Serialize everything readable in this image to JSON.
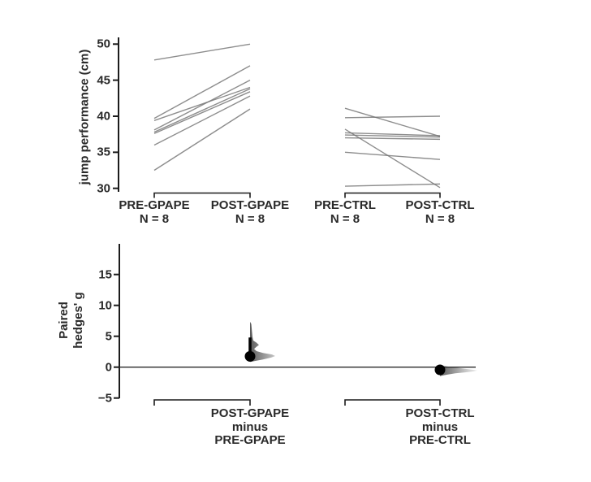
{
  "page": {
    "background": "#ffffff"
  },
  "chart_data": [
    {
      "type": "line",
      "subtype": "paired-slopegraph",
      "title": "",
      "ylabel": "jump performance (cm)",
      "ylim": [
        29,
        51.5
      ],
      "grid": false,
      "yticks": [
        {
          "v": 30,
          "label": "30"
        },
        {
          "v": 35,
          "label": "35"
        },
        {
          "v": 40,
          "label": "40"
        },
        {
          "v": 45,
          "label": "45"
        },
        {
          "v": 50,
          "label": "50"
        }
      ],
      "groups": [
        {
          "label": "PRE-GPAPE",
          "n": "N = 8"
        },
        {
          "label": "POST-GPAPE",
          "n": "N = 8"
        },
        {
          "label": "PRE-CTRL",
          "n": "N = 8"
        },
        {
          "label": "POST-CTRL",
          "n": "N = 8"
        }
      ],
      "series": [
        {
          "name": "GPAPE paired lines",
          "from_group": 0,
          "to_group": 1,
          "pairs": [
            [
              47.8,
              50.0
            ],
            [
              39.7,
              47.0
            ],
            [
              39.4,
              44.0
            ],
            [
              38.1,
              45.0
            ],
            [
              37.8,
              43.8
            ],
            [
              37.6,
              43.4
            ],
            [
              36.0,
              42.8
            ],
            [
              32.5,
              41.0
            ]
          ]
        },
        {
          "name": "CTRL paired lines",
          "from_group": 2,
          "to_group": 3,
          "pairs": [
            [
              41.1,
              37.2
            ],
            [
              39.8,
              40.0
            ],
            [
              38.2,
              30.1
            ],
            [
              37.7,
              37.3
            ],
            [
              37.4,
              37.1
            ],
            [
              37.0,
              36.8
            ],
            [
              35.0,
              34.0
            ],
            [
              30.3,
              30.6
            ]
          ]
        }
      ],
      "line_color": "#707070"
    },
    {
      "type": "scatter",
      "subtype": "paired-effect-size",
      "ylabel_lines": [
        "Paired",
        "hedges' g"
      ],
      "ylim": [
        -6,
        20
      ],
      "grid": false,
      "zero_line": true,
      "yticks": [
        {
          "v": -5,
          "label": "−5"
        },
        {
          "v": 0,
          "label": "0"
        },
        {
          "v": 5,
          "label": "5"
        },
        {
          "v": 10,
          "label": "10"
        },
        {
          "v": 15,
          "label": "15"
        }
      ],
      "effects": [
        {
          "label_lines": [
            "POST-GPAPE",
            "minus",
            "PRE-GPAPE"
          ],
          "g": 1.75,
          "ci_low": 0.9,
          "ci_high": 4.8,
          "violin_outline": [
            [
              0,
              0.85
            ],
            [
              6,
              1.0
            ],
            [
              16,
              1.25
            ],
            [
              26,
              1.55
            ],
            [
              31,
              1.8
            ],
            [
              27,
              2.05
            ],
            [
              16,
              2.3
            ],
            [
              8,
              2.6
            ],
            [
              5,
              2.95
            ],
            [
              8,
              3.3
            ],
            [
              11,
              3.6
            ],
            [
              8,
              3.95
            ],
            [
              4,
              4.3
            ],
            [
              3,
              4.9
            ],
            [
              2.5,
              5.6
            ],
            [
              2,
              6.3
            ],
            [
              1.5,
              7.0
            ],
            [
              0,
              7.35
            ]
          ]
        },
        {
          "label_lines": [
            "POST-CTRL",
            "minus",
            "PRE-CTRL"
          ],
          "g": -0.43,
          "ci_low": -0.9,
          "ci_high": 0.0,
          "violin_outline": [
            [
              0,
              0.25
            ],
            [
              10,
              0.1
            ],
            [
              22,
              -0.1
            ],
            [
              33,
              -0.3
            ],
            [
              42,
              -0.45
            ],
            [
              46,
              -0.55
            ],
            [
              41,
              -0.7
            ],
            [
              31,
              -0.85
            ],
            [
              19,
              -1.0
            ],
            [
              9,
              -1.2
            ],
            [
              3,
              -1.35
            ],
            [
              0,
              -1.45
            ]
          ]
        }
      ],
      "marker_color": "#000000",
      "violin_color": "#9a9a9a"
    }
  ]
}
